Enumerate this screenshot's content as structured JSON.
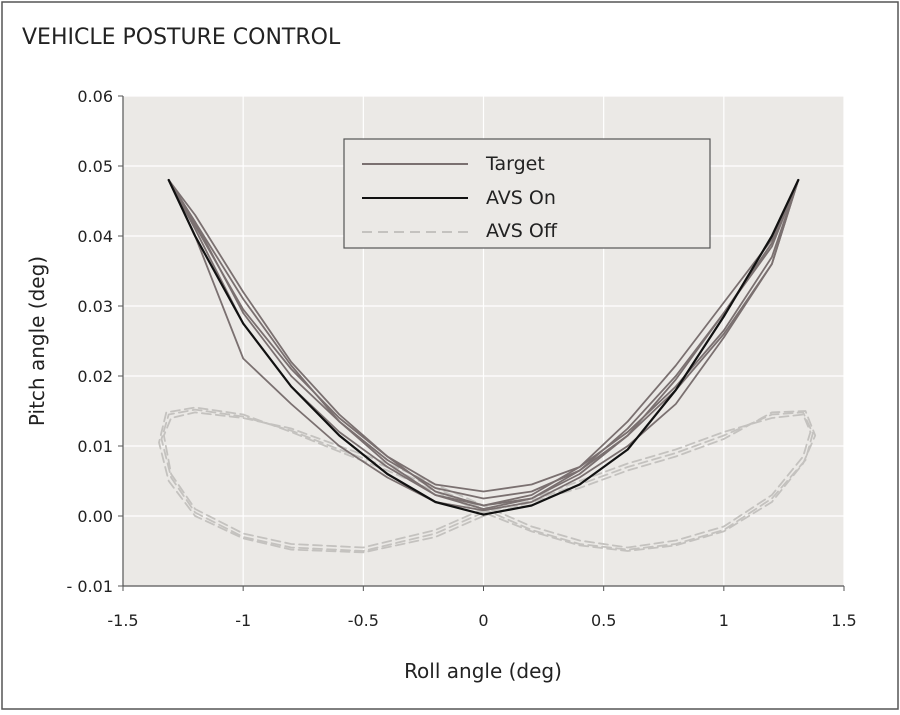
{
  "chart_data": {
    "type": "line",
    "title": "VEHICLE POSTURE CONTROL",
    "xlabel": "Roll angle (deg)",
    "ylabel": "Pitch angle (deg)",
    "xlim": [
      -1.5,
      1.5
    ],
    "ylim": [
      -0.01,
      0.06
    ],
    "xticks": [
      -1.5,
      -1,
      -0.5,
      0,
      0.5,
      1,
      1.5
    ],
    "xtick_labels": [
      "-1.5",
      "-1",
      "-0.5",
      "0",
      "0.5",
      "1",
      "1.5"
    ],
    "yticks": [
      -0.01,
      0,
      0.01,
      0.02,
      0.03,
      0.04,
      0.05,
      0.06
    ],
    "ytick_labels": [
      "- 0.01",
      "0.00",
      "0.01",
      "0.02",
      "0.03",
      "0.04",
      "0.05",
      "0.06"
    ],
    "grid": true,
    "legend_position": "top-center",
    "colors": {
      "plot_bg": "#ebe9e6",
      "grid": "#ffffff",
      "target": "#7a7070",
      "avs_on": "#111111",
      "avs_off": "#c4c2bf",
      "frame": "#555555"
    },
    "series": [
      {
        "name": "Target",
        "style": "solid",
        "lines": [
          {
            "x": [
              -1.31,
              -1.2,
              -1.0,
              -0.8,
              -0.6,
              -0.4,
              -0.2,
              0,
              0.2,
              0.4,
              0.6,
              0.8,
              1.0,
              1.2,
              1.31
            ],
            "y": [
              0.048,
              0.04,
              0.0225,
              0.016,
              0.01,
              0.0055,
              0.002,
              0.0008,
              0.002,
              0.0055,
              0.01,
              0.016,
              0.0255,
              0.036,
              0.048
            ]
          },
          {
            "x": [
              -1.31,
              -1.2,
              -1.0,
              -0.8,
              -0.6,
              -0.4,
              -0.2,
              0,
              0.2,
              0.4,
              0.6,
              0.8,
              1.0,
              1.2,
              1.31
            ],
            "y": [
              0.048,
              0.042,
              0.029,
              0.02,
              0.0135,
              0.008,
              0.004,
              0.0025,
              0.0035,
              0.0065,
              0.0115,
              0.018,
              0.026,
              0.036,
              0.048
            ]
          },
          {
            "x": [
              -1.31,
              -1.2,
              -1.0,
              -0.8,
              -0.6,
              -0.4,
              -0.2,
              0,
              0.2,
              0.4,
              0.6,
              0.8,
              1.0,
              1.2,
              1.31
            ],
            "y": [
              0.048,
              0.043,
              0.032,
              0.022,
              0.0145,
              0.0085,
              0.0045,
              0.0035,
              0.0045,
              0.007,
              0.012,
              0.0185,
              0.0265,
              0.037,
              0.048
            ]
          },
          {
            "x": [
              -1.31,
              -1.2,
              -1.0,
              -0.8,
              -0.6,
              -0.4,
              -0.2,
              0,
              0.2,
              0.4,
              0.6,
              0.8,
              1.0,
              1.2,
              1.31
            ],
            "y": [
              0.048,
              0.041,
              0.0275,
              0.0185,
              0.012,
              0.007,
              0.003,
              0.0015,
              0.0025,
              0.006,
              0.0115,
              0.0195,
              0.029,
              0.039,
              0.048
            ]
          },
          {
            "x": [
              -1.31,
              -1.2,
              -1.0,
              -0.8,
              -0.6,
              -0.4,
              -0.2,
              0,
              0.2,
              0.4,
              0.6,
              0.8,
              1.0,
              1.2,
              1.31
            ],
            "y": [
              0.048,
              0.0415,
              0.0295,
              0.021,
              0.014,
              0.0085,
              0.0035,
              0.0015,
              0.003,
              0.007,
              0.0135,
              0.0215,
              0.0305,
              0.0395,
              0.048
            ]
          },
          {
            "x": [
              -1.31,
              -1.2,
              -1.0,
              -0.8,
              -0.6,
              -0.4,
              -0.2,
              0,
              0.2,
              0.4,
              0.6,
              0.8,
              1.0,
              1.2,
              1.31
            ],
            "y": [
              0.048,
              0.042,
              0.031,
              0.0215,
              0.0135,
              0.0075,
              0.003,
              0.001,
              0.0025,
              0.0065,
              0.0125,
              0.02,
              0.029,
              0.0385,
              0.048
            ]
          }
        ]
      },
      {
        "name": "AVS On",
        "style": "solid",
        "lines": [
          {
            "x": [
              -1.31,
              -1.2,
              -1.0,
              -0.8,
              -0.6,
              -0.4,
              -0.2,
              0,
              0.2,
              0.4,
              0.6,
              0.8,
              1.0,
              1.2,
              1.31
            ],
            "y": [
              0.048,
              0.04,
              0.0275,
              0.0185,
              0.0115,
              0.006,
              0.002,
              0.0002,
              0.0015,
              0.0045,
              0.0095,
              0.018,
              0.0285,
              0.04,
              0.048
            ]
          }
        ]
      },
      {
        "name": "AVS Off",
        "style": "dashed",
        "lines": [
          {
            "x": [
              0,
              -0.2,
              -0.5,
              -0.8,
              -1.0,
              -1.2,
              -1.3,
              -1.33,
              -1.3,
              -1.2,
              -1.0,
              -0.8,
              -0.6,
              -0.4,
              -0.2,
              0,
              0.2,
              0.4,
              0.6,
              0.8,
              1.0,
              1.2,
              1.33,
              1.36,
              1.33,
              1.2,
              1.0,
              0.8,
              0.6,
              0.4,
              0.2,
              0
            ],
            "y": [
              0.001,
              -0.002,
              -0.0045,
              -0.004,
              -0.0025,
              0.001,
              0.006,
              0.0115,
              0.014,
              0.0148,
              0.014,
              0.0125,
              0.01,
              0.0075,
              0.0045,
              0.0015,
              -0.0015,
              -0.0035,
              -0.0045,
              -0.0035,
              -0.0015,
              0.003,
              0.0085,
              0.012,
              0.0145,
              0.014,
              0.012,
              0.0095,
              0.0075,
              0.005,
              0.0025,
              0.001
            ]
          },
          {
            "x": [
              0,
              -0.2,
              -0.5,
              -0.8,
              -1.0,
              -1.2,
              -1.3,
              -1.34,
              -1.31,
              -1.2,
              -1.0,
              -0.8,
              -0.6,
              -0.4,
              -0.2,
              0,
              0.2,
              0.4,
              0.6,
              0.8,
              1.0,
              1.2,
              1.34,
              1.37,
              1.33,
              1.2,
              1.0,
              0.8,
              0.6,
              0.4,
              0.2,
              0
            ],
            "y": [
              0.0005,
              -0.0025,
              -0.005,
              -0.0045,
              -0.003,
              0.0005,
              0.0055,
              0.011,
              0.0145,
              0.0152,
              0.0142,
              0.0122,
              0.0095,
              0.007,
              0.004,
              0.001,
              -0.002,
              -0.004,
              -0.0048,
              -0.004,
              -0.002,
              0.0025,
              0.008,
              0.0118,
              0.0148,
              0.0145,
              0.0115,
              0.009,
              0.007,
              0.0045,
              0.0022,
              0.0005
            ]
          },
          {
            "x": [
              0,
              -0.2,
              -0.5,
              -0.8,
              -1.0,
              -1.2,
              -1.31,
              -1.35,
              -1.32,
              -1.2,
              -1.0,
              -0.8,
              -0.6,
              -0.4,
              -0.2,
              0,
              0.2,
              0.4,
              0.6,
              0.8,
              1.0,
              1.2,
              1.33,
              1.38,
              1.34,
              1.2,
              1.0,
              0.8,
              0.6,
              0.4,
              0.2,
              0
            ],
            "y": [
              0.0,
              -0.003,
              -0.0052,
              -0.0048,
              -0.0032,
              0.0,
              0.005,
              0.0105,
              0.0148,
              0.0155,
              0.0145,
              0.012,
              0.0092,
              0.0065,
              0.0035,
              0.0005,
              -0.0022,
              -0.0042,
              -0.005,
              -0.0042,
              -0.0022,
              0.002,
              0.0075,
              0.0115,
              0.015,
              0.0148,
              0.011,
              0.0085,
              0.0065,
              0.004,
              0.002,
              0.0
            ]
          }
        ]
      }
    ]
  }
}
